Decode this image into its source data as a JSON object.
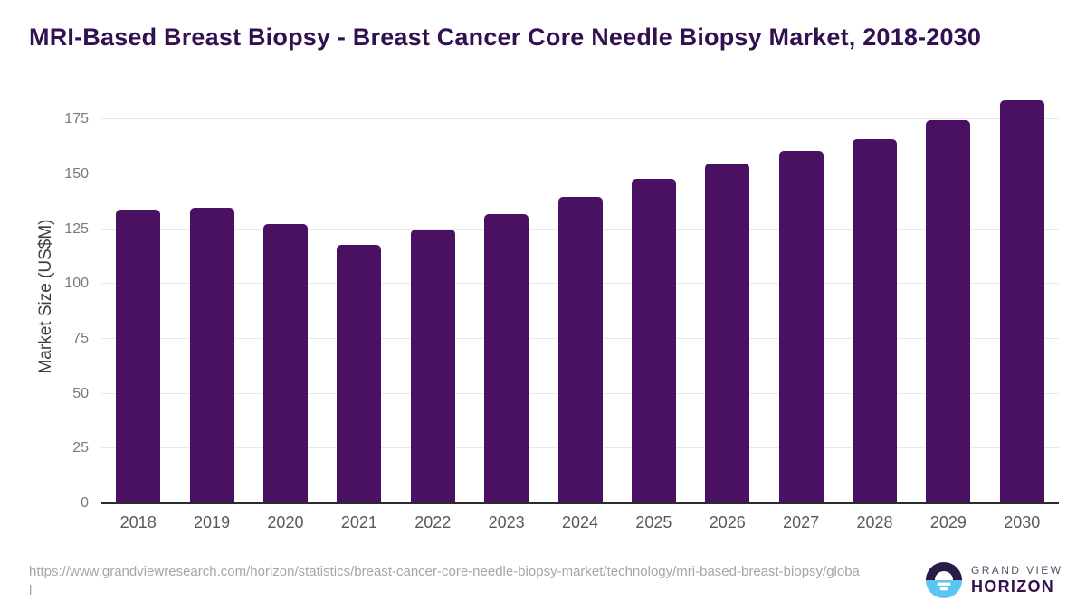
{
  "title": "MRI-Based Breast Biopsy - Breast Cancer Core Needle Biopsy Market, 2018-2030",
  "source_url": "https://www.grandviewresearch.com/horizon/statistics/breast-cancer-core-needle-biopsy-market/technology/mri-based-breast-biopsy/global",
  "branding": {
    "name_top": "GRAND VIEW",
    "name_bottom": "HORIZON",
    "logo_icon": "sun-over-horizon-icon"
  },
  "colors": {
    "bar": "#4a1162",
    "title_text": "#331150",
    "gridline": "#e9e9e9",
    "axis_line": "#2b2b2b",
    "ytick_text": "#7a7a7a",
    "xtick_text": "#58595b",
    "url_text": "#a6a6a6",
    "logo_dark": "#2b1b47",
    "logo_blue": "#5bc6f0"
  },
  "chart_data": {
    "type": "bar",
    "title": "MRI-Based Breast Biopsy - Breast Cancer Core Needle Biopsy Market, 2018-2030",
    "categories": [
      "2018",
      "2019",
      "2020",
      "2021",
      "2022",
      "2023",
      "2024",
      "2025",
      "2026",
      "2027",
      "2028",
      "2029",
      "2030"
    ],
    "values": [
      133.8,
      134.5,
      127.4,
      117.8,
      124.6,
      132.0,
      139.5,
      147.7,
      155.0,
      160.8,
      165.9,
      174.6,
      183.8
    ],
    "xlabel": "",
    "ylabel": "Market Size (US$M)",
    "ylim": [
      0,
      188
    ],
    "yticks": [
      0,
      25,
      50,
      75,
      100,
      125,
      150,
      175
    ],
    "grid": "horizontal",
    "legend": "none",
    "bar_color": "#4a1162"
  }
}
